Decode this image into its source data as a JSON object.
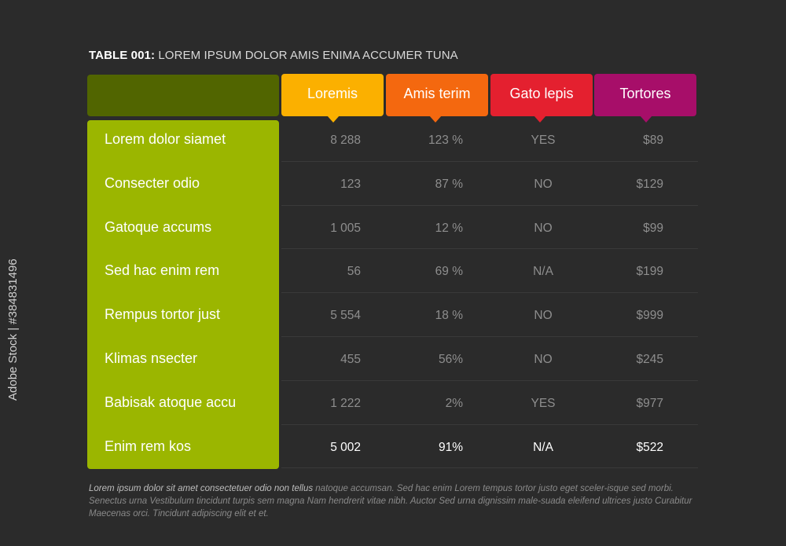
{
  "title": {
    "code": "TABLE 001:",
    "text": "LOREM IPSUM DOLOR AMIS ENIMA ACCUMER TUNA"
  },
  "columns": [
    "Loremis",
    "Amis terim",
    "Gato lepis",
    "Tortores"
  ],
  "rows": [
    {
      "label": "Lorem dolor siamet",
      "values": [
        "8 288",
        "123 %",
        "YES",
        "$89"
      ]
    },
    {
      "label": "Consecter odio",
      "values": [
        "123",
        "87 %",
        "NO",
        "$129"
      ]
    },
    {
      "label": "Gatoque accums",
      "values": [
        "1 005",
        "12 %",
        "NO",
        "$99"
      ]
    },
    {
      "label": "Sed hac enim rem",
      "values": [
        "56",
        "69 %",
        "N/A",
        "$199"
      ]
    },
    {
      "label": "Rempus tortor just",
      "values": [
        "5 554",
        "18 %",
        "NO",
        "$999"
      ]
    },
    {
      "label": "Klimas nsecter",
      "values": [
        "455",
        "56%",
        "NO",
        "$245"
      ]
    },
    {
      "label": "Babisak atoque accu",
      "values": [
        "1 222",
        "2%",
        "YES",
        "$977"
      ]
    },
    {
      "label": "Enim rem kos",
      "values": [
        "5 002",
        "91%",
        "N/A",
        "$522"
      ]
    }
  ],
  "footnote": {
    "lead": "Lorem ipsum dolor sit amet consectetuer odio non tellus",
    "rest": " natoque accumsan. Sed hac enim Lorem tempus tortor justo eget sceler-isque sed morbi. Senectus urna Vestibulum tincidunt turpis sem magna Nam hendrerit vitae nibh. Auctor Sed urna dignissim male-suada eleifend ultrices justo Curabitur Maecenas orci. Tincidunt adipiscing elit et et."
  },
  "side_text": "Adobe Stock | #384831496",
  "colors": {
    "background": "#2b2b2b",
    "row_panel": "#9bb600",
    "corner": "#516500",
    "col1": "#fbb000",
    "col2": "#f4680f",
    "col3": "#e4202f",
    "col4": "#a70e69"
  }
}
